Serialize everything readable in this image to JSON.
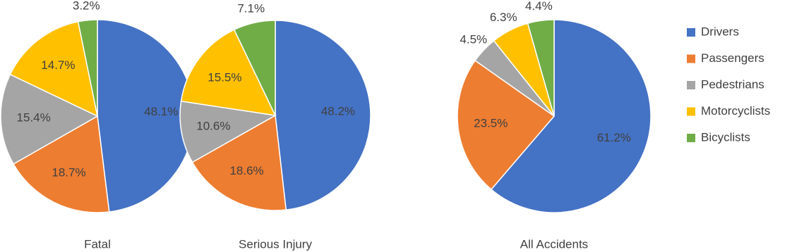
{
  "chart_data": [
    {
      "type": "pie",
      "title": "Fatal",
      "categories": [
        "Drivers",
        "Passengers",
        "Pedestrians",
        "Motorcyclists",
        "Bicyclists"
      ],
      "values": [
        48.1,
        18.7,
        15.4,
        14.7,
        3.2
      ],
      "value_labels": [
        "48.1%",
        "18.7%",
        "15.4%",
        "14.7%",
        "3.2%"
      ],
      "colors": [
        "#4472c4",
        "#ed7d31",
        "#a5a5a5",
        "#ffc000",
        "#70ad47"
      ]
    },
    {
      "type": "pie",
      "title": "Serious Injury",
      "categories": [
        "Drivers",
        "Passengers",
        "Pedestrians",
        "Motorcyclists",
        "Bicyclists"
      ],
      "values": [
        48.2,
        18.6,
        10.6,
        15.5,
        7.1
      ],
      "value_labels": [
        "48.2%",
        "18.6%",
        "10.6%",
        "15.5%",
        "7.1%"
      ],
      "colors": [
        "#4472c4",
        "#ed7d31",
        "#a5a5a5",
        "#ffc000",
        "#70ad47"
      ]
    },
    {
      "type": "pie",
      "title": "All Accidents",
      "categories": [
        "Drivers",
        "Passengers",
        "Pedestrians",
        "Motorcyclists",
        "Bicyclists"
      ],
      "values": [
        61.2,
        23.5,
        4.5,
        6.3,
        4.4
      ],
      "value_labels": [
        "61.2%",
        "23.5%",
        "4.5%",
        "6.3%",
        "4.4%"
      ],
      "colors": [
        "#4472c4",
        "#ed7d31",
        "#a5a5a5",
        "#ffc000",
        "#70ad47"
      ]
    }
  ]
}
